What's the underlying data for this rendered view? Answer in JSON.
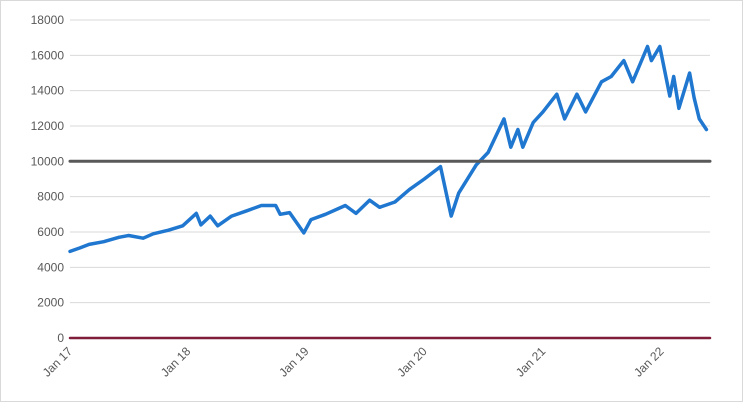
{
  "chart_data": {
    "type": "line",
    "title": "",
    "xlabel": "",
    "ylabel": "",
    "xlim": [
      "2017-01-01",
      "2022-05-31"
    ],
    "ylim": [
      0,
      18000
    ],
    "y_ticks": [
      0,
      2000,
      4000,
      6000,
      8000,
      10000,
      12000,
      14000,
      16000,
      18000
    ],
    "y_tick_labels": [
      "0",
      "2000",
      "4000",
      "6000",
      "8000",
      "10000",
      "12000",
      "14000",
      "16000",
      "18000"
    ],
    "x_ticks": [
      "2017-01-01",
      "2018-01-01",
      "2019-01-01",
      "2020-01-01",
      "2021-01-01",
      "2022-01-01"
    ],
    "x_tick_labels": [
      "Jan 17",
      "Jan 18",
      "Jan 19",
      "Jan 20",
      "Jan 21",
      "Jan 22"
    ],
    "grid": "horizontal",
    "legend": "none",
    "series": [
      {
        "color": "#1f77d0",
        "points": [
          [
            "2017-01-01",
            4900
          ],
          [
            "2017-02-01",
            5100
          ],
          [
            "2017-03-01",
            5300
          ],
          [
            "2017-04-15",
            5450
          ],
          [
            "2017-06-01",
            5700
          ],
          [
            "2017-07-01",
            5800
          ],
          [
            "2017-08-15",
            5650
          ],
          [
            "2017-09-15",
            5900
          ],
          [
            "2017-11-01",
            6100
          ],
          [
            "2017-12-15",
            6350
          ],
          [
            "2018-01-26",
            7050
          ],
          [
            "2018-02-09",
            6400
          ],
          [
            "2018-03-10",
            6900
          ],
          [
            "2018-04-02",
            6350
          ],
          [
            "2018-05-15",
            6900
          ],
          [
            "2018-07-01",
            7200
          ],
          [
            "2018-08-15",
            7500
          ],
          [
            "2018-09-28",
            7500
          ],
          [
            "2018-10-12",
            7000
          ],
          [
            "2018-11-10",
            7100
          ],
          [
            "2018-12-24",
            5950
          ],
          [
            "2019-01-15",
            6700
          ],
          [
            "2019-03-01",
            7000
          ],
          [
            "2019-05-01",
            7500
          ],
          [
            "2019-06-03",
            7050
          ],
          [
            "2019-07-15",
            7800
          ],
          [
            "2019-08-15",
            7400
          ],
          [
            "2019-10-01",
            7700
          ],
          [
            "2019-11-15",
            8400
          ],
          [
            "2019-12-31",
            9000
          ],
          [
            "2020-02-19",
            9700
          ],
          [
            "2020-03-23",
            6900
          ],
          [
            "2020-04-15",
            8200
          ],
          [
            "2020-06-08",
            9800
          ],
          [
            "2020-07-15",
            10500
          ],
          [
            "2020-09-02",
            12400
          ],
          [
            "2020-09-23",
            10800
          ],
          [
            "2020-10-15",
            11800
          ],
          [
            "2020-10-30",
            10800
          ],
          [
            "2020-12-01",
            12200
          ],
          [
            "2020-12-31",
            12800
          ],
          [
            "2021-02-12",
            13800
          ],
          [
            "2021-03-08",
            12400
          ],
          [
            "2021-04-15",
            13800
          ],
          [
            "2021-05-12",
            12800
          ],
          [
            "2021-06-30",
            14500
          ],
          [
            "2021-07-30",
            14800
          ],
          [
            "2021-09-07",
            15700
          ],
          [
            "2021-10-04",
            14500
          ],
          [
            "2021-11-19",
            16500
          ],
          [
            "2021-12-01",
            15700
          ],
          [
            "2021-12-27",
            16500
          ],
          [
            "2022-01-27",
            13700
          ],
          [
            "2022-02-08",
            14800
          ],
          [
            "2022-02-24",
            13000
          ],
          [
            "2022-03-29",
            15000
          ],
          [
            "2022-04-12",
            13600
          ],
          [
            "2022-04-28",
            12400
          ],
          [
            "2022-05-20",
            11800
          ]
        ]
      },
      {
        "color": "#595959",
        "points": [
          [
            "2017-01-01",
            10000
          ],
          [
            "2022-05-31",
            10000
          ]
        ]
      },
      {
        "color": "#7f1d3a",
        "points": [
          [
            "2017-01-01",
            0
          ],
          [
            "2022-05-31",
            0
          ]
        ]
      }
    ]
  }
}
